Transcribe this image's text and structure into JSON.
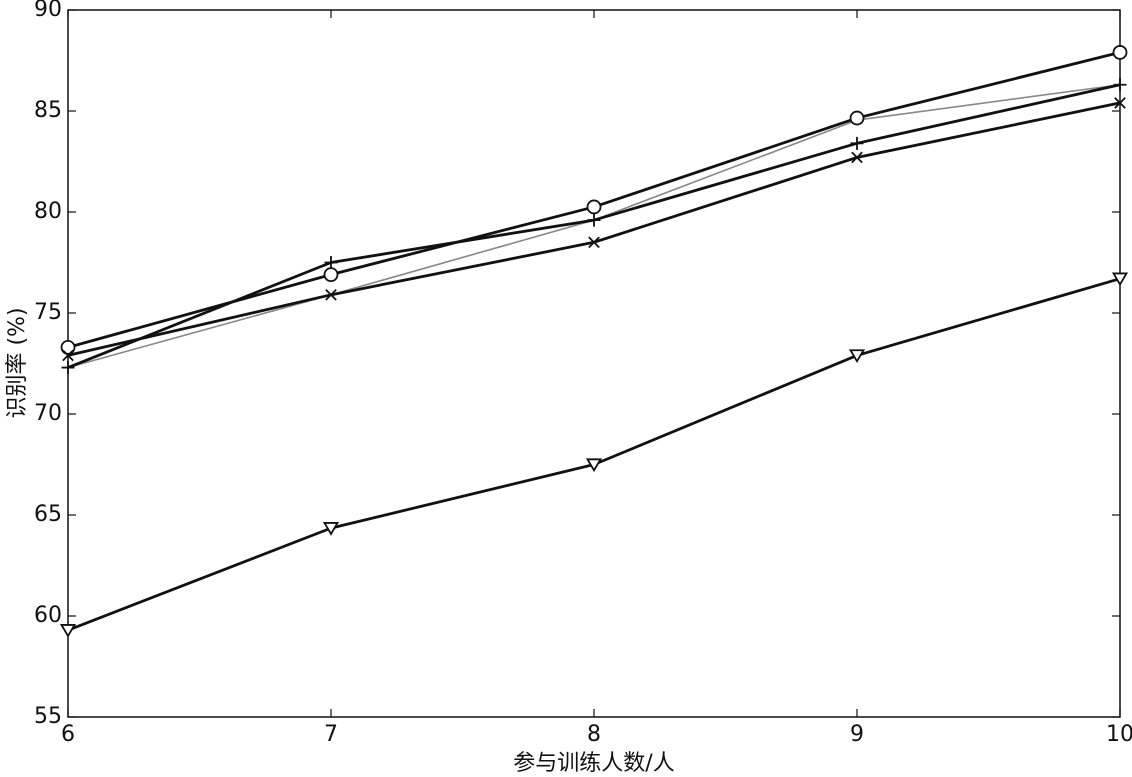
{
  "chart_data": {
    "type": "line",
    "xlabel": "参与训练人数/人",
    "ylabel": "识别率 (%)",
    "x": [
      6,
      7,
      8,
      9,
      10
    ],
    "xlim": [
      6,
      10
    ],
    "xticks": [
      6,
      7,
      8,
      9,
      10
    ],
    "ylim": [
      55,
      90
    ],
    "yticks": [
      55,
      60,
      65,
      70,
      75,
      80,
      85,
      90
    ],
    "series": [
      {
        "color": "#888888",
        "marker": "none",
        "values": [
          72.3,
          75.9,
          79.6,
          84.55,
          86.3
        ]
      },
      {
        "color": "#111111",
        "marker": "circle",
        "values": [
          73.3,
          76.9,
          80.25,
          84.65,
          87.9
        ]
      },
      {
        "color": "#111111",
        "marker": "plus",
        "values": [
          72.3,
          77.5,
          79.6,
          83.4,
          86.3
        ]
      },
      {
        "color": "#111111",
        "marker": "x",
        "values": [
          72.9,
          75.9,
          78.5,
          82.7,
          85.4
        ]
      },
      {
        "color": "#111111",
        "marker": "triangle-down",
        "values": [
          59.3,
          64.35,
          67.5,
          72.9,
          76.7
        ]
      }
    ]
  }
}
